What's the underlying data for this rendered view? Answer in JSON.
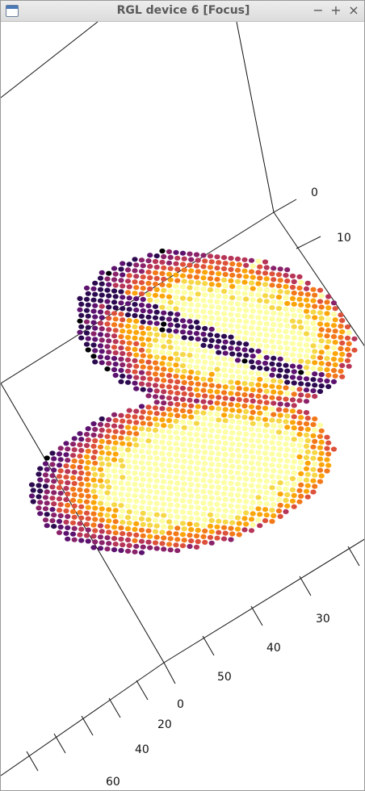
{
  "window": {
    "title": "RGL device 6 [Focus]",
    "controls": {
      "minimize": "−",
      "maximize": "+",
      "close": "×"
    }
  },
  "plot": {
    "colormap": [
      "#000004",
      "#2b0a4f",
      "#5c126e",
      "#8a226a",
      "#b73557",
      "#dd513a",
      "#f37819",
      "#fca50a",
      "#f6d746",
      "#fcffa4"
    ],
    "axes": {
      "right_axis_ticks": [
        "0",
        "10"
      ],
      "lower_right_ticks": [
        "30",
        "40",
        "50"
      ],
      "lower_left_ticks": [
        "0",
        "20",
        "40",
        "60"
      ]
    }
  }
}
